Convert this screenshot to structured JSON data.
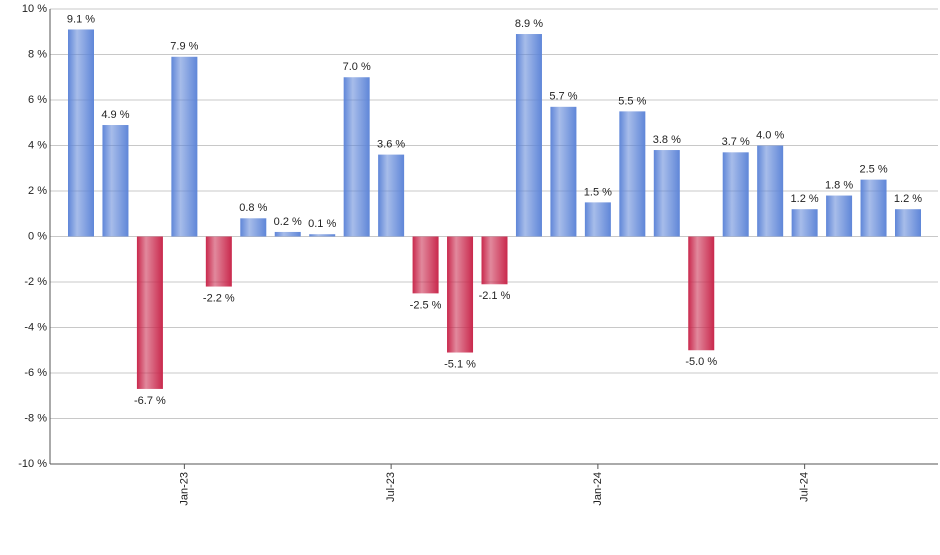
{
  "chart_data": {
    "type": "bar",
    "categories": [
      null,
      null,
      null,
      "Jan-23",
      null,
      null,
      null,
      null,
      null,
      "Jul-23",
      null,
      null,
      null,
      null,
      null,
      "Jan-24",
      null,
      null,
      null,
      null,
      null,
      "Jul-24",
      null,
      null,
      null
    ],
    "values": [
      9.1,
      4.9,
      -6.7,
      7.9,
      -2.2,
      0.8,
      0.2,
      0.1,
      7.0,
      3.6,
      -2.5,
      -5.1,
      -2.1,
      8.9,
      5.7,
      1.5,
      5.5,
      3.8,
      -5.0,
      3.7,
      4.0,
      1.2,
      1.8,
      2.5,
      1.2
    ],
    "value_labels": [
      "9.1 %",
      "4.9 %",
      "-6.7 %",
      "7.9 %",
      "-2.2 %",
      "0.8 %",
      "0.2 %",
      "0.1 %",
      "7.0 %",
      "3.6 %",
      "-2.5 %",
      "-5.1 %",
      "-2.1 %",
      "8.9 %",
      "5.7 %",
      "1.5 %",
      "5.5 %",
      "3.8 %",
      "-5.0 %",
      "3.7 %",
      "4.0 %",
      "1.2 %",
      "1.8 %",
      "2.5 %",
      "1.2 %"
    ],
    "color": "#5f86d8",
    "negative_color": "#c9284c",
    "ylim": [
      -10,
      10
    ],
    "yticks": [
      {
        "value": -10,
        "label": "-10 %"
      },
      {
        "value": -8,
        "label": "-8 %"
      },
      {
        "value": -6,
        "label": "-6 %"
      },
      {
        "value": -4,
        "label": "-4 %"
      },
      {
        "value": -2,
        "label": "-2 %"
      },
      {
        "value": 0,
        "label": "0 %"
      },
      {
        "value": 2,
        "label": "2 %"
      },
      {
        "value": 4,
        "label": "4 %"
      },
      {
        "value": 6,
        "label": "6 %"
      },
      {
        "value": 8,
        "label": "8 %"
      },
      {
        "value": 10,
        "label": "10 %"
      }
    ],
    "grid": true
  }
}
